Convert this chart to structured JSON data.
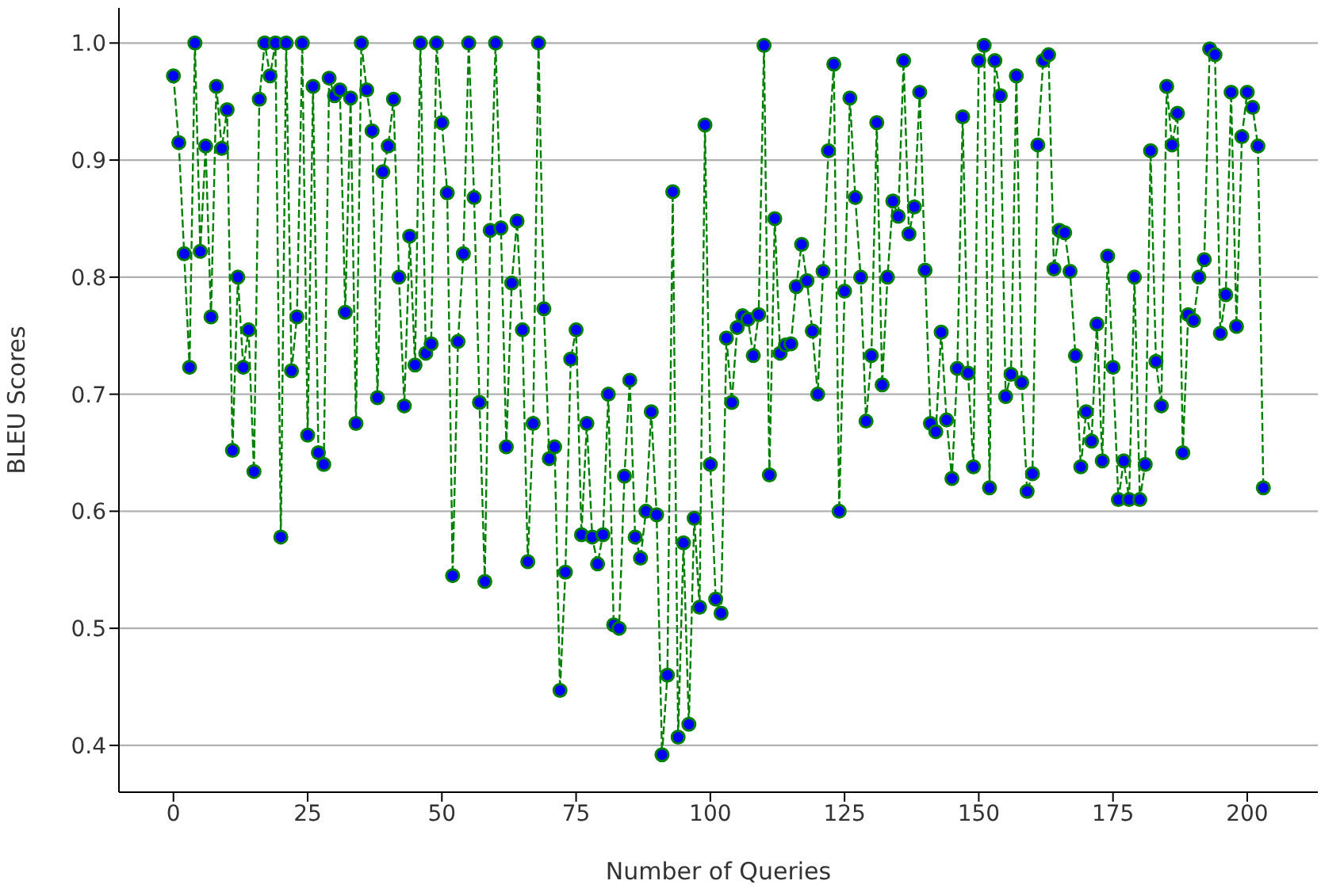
{
  "chart_data": {
    "type": "line",
    "xlabel": "Number of Queries",
    "ylabel": "BLEU Scores",
    "x": [
      0,
      1,
      2,
      3,
      4,
      5,
      6,
      7,
      8,
      9,
      10,
      11,
      12,
      13,
      14,
      15,
      16,
      17,
      18,
      19,
      20,
      21,
      22,
      23,
      24,
      25,
      26,
      27,
      28,
      29,
      30,
      31,
      32,
      33,
      34,
      35,
      36,
      37,
      38,
      39,
      40,
      41,
      42,
      43,
      44,
      45,
      46,
      47,
      48,
      49,
      50,
      51,
      52,
      53,
      54,
      55,
      56,
      57,
      58,
      59,
      60,
      61,
      62,
      63,
      64,
      65,
      66,
      67,
      68,
      69,
      70,
      71,
      72,
      73,
      74,
      75,
      76,
      77,
      78,
      79,
      80,
      81,
      82,
      83,
      84,
      85,
      86,
      87,
      88,
      89,
      90,
      91,
      92,
      93,
      94,
      95,
      96,
      97,
      98,
      99,
      100,
      101,
      102,
      103,
      104,
      105,
      106,
      107,
      108,
      109,
      110,
      111,
      112,
      113,
      114,
      115,
      116,
      117,
      118,
      119,
      120,
      121,
      122,
      123,
      124,
      125,
      126,
      127,
      128,
      129,
      130,
      131,
      132,
      133,
      134,
      135,
      136,
      137,
      138,
      139,
      140,
      141,
      142,
      143,
      144,
      145,
      146,
      147,
      148,
      149,
      150,
      151,
      152,
      153,
      154,
      155,
      156,
      157,
      158,
      159,
      160,
      161,
      162,
      163,
      164,
      165,
      166,
      167,
      168,
      169,
      170,
      171,
      172,
      173,
      174,
      175,
      176,
      177,
      178,
      179,
      180,
      181,
      182,
      183,
      184,
      185,
      186,
      187,
      188,
      189,
      190,
      191,
      192,
      193,
      194,
      195,
      196,
      197,
      198,
      199,
      200,
      201,
      202,
      203
    ],
    "series": [
      {
        "color": "#008000",
        "values": [
          0.972,
          0.915,
          0.82,
          0.723,
          1.0,
          0.822,
          0.912,
          0.766,
          0.963,
          0.91,
          0.943,
          0.652,
          0.8,
          0.723,
          0.755,
          0.634,
          0.952,
          1.0,
          0.972,
          1.0,
          0.578,
          1.0,
          0.72,
          0.766,
          1.0,
          0.665,
          0.963,
          0.65,
          0.64,
          0.97,
          0.955,
          0.96,
          0.77,
          0.953,
          0.675,
          1.0,
          0.96,
          0.925,
          0.697,
          0.89,
          0.912,
          0.952,
          0.8,
          0.69,
          0.835,
          0.725,
          1.0,
          0.735,
          0.743,
          1.0,
          0.932,
          0.872,
          0.545,
          0.745,
          0.82,
          1.0,
          0.868,
          0.693,
          0.54,
          0.84,
          1.0,
          0.842,
          0.655,
          0.795,
          0.848,
          0.755,
          0.557,
          0.675,
          1.0,
          0.773,
          0.645,
          0.655,
          0.447,
          0.548,
          0.73,
          0.755,
          0.58,
          0.675,
          0.578,
          0.555,
          0.58,
          0.7,
          0.503,
          0.5,
          0.63,
          0.712,
          0.578,
          0.56,
          0.6,
          0.685,
          0.597,
          0.392,
          0.46,
          0.873,
          0.407,
          0.573,
          0.418,
          0.594,
          0.518,
          0.93,
          0.64,
          0.525,
          0.513,
          0.748,
          0.693,
          0.757,
          0.767,
          0.764,
          0.733,
          0.768,
          0.998,
          0.631,
          0.85,
          0.735,
          0.742,
          0.743,
          0.792,
          0.828,
          0.797,
          0.754,
          0.7,
          0.805,
          0.908,
          0.982,
          0.6,
          0.788,
          0.953,
          0.868,
          0.8,
          0.677,
          0.733,
          0.932,
          0.708,
          0.8,
          0.865,
          0.852,
          0.985,
          0.837,
          0.86,
          0.958,
          0.806,
          0.675,
          0.668,
          0.753,
          0.678,
          0.628,
          0.722,
          0.937,
          0.718,
          0.638,
          0.985,
          0.998,
          0.62,
          0.985,
          0.955,
          0.698,
          0.717,
          0.972,
          0.71,
          0.617,
          0.632,
          0.913,
          0.985,
          0.99,
          0.807,
          0.84,
          0.838,
          0.805,
          0.733,
          0.638,
          0.685,
          0.66,
          0.76,
          0.643,
          0.818,
          0.723,
          0.61,
          0.643,
          0.61,
          0.8,
          0.61,
          0.64,
          0.908,
          0.728,
          0.69,
          0.963,
          0.913,
          0.94,
          0.65,
          0.768,
          0.763,
          0.8,
          0.815,
          0.995,
          0.99,
          0.752,
          0.785,
          0.958,
          0.758,
          0.92,
          0.958,
          0.945,
          0.912,
          0.62
        ]
      }
    ],
    "xlim": [
      -10.15,
      213.15
    ],
    "xticks": [
      0,
      25,
      50,
      75,
      100,
      125,
      150,
      175,
      200
    ],
    "ylim": [
      0.36,
      1.03
    ],
    "yticks": [
      0.4,
      0.5,
      0.6,
      0.7,
      0.8,
      0.9,
      {
        "value": 1,
        "label": "1.0"
      }
    ],
    "grid": "y",
    "marker": "circle",
    "line_style": "dashed",
    "legend": false
  }
}
